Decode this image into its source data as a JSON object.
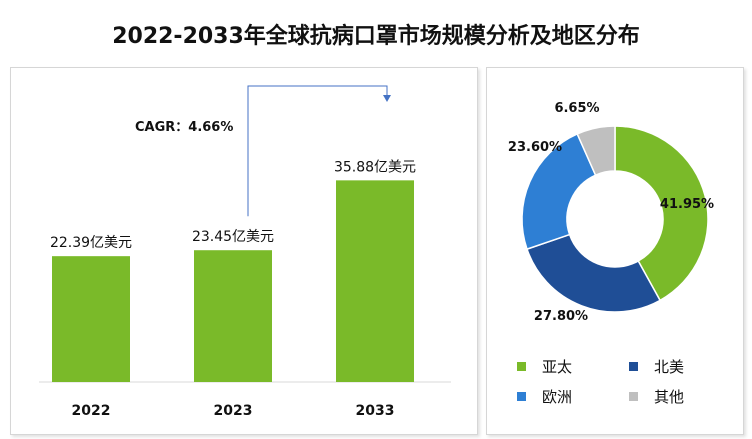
{
  "title": "2022-2033年全球抗病口罩市场规模分析及地区分布",
  "chart_data": [
    {
      "type": "bar",
      "categories": [
        "2022",
        "2023",
        "2033"
      ],
      "values": [
        22.39,
        23.45,
        35.88
      ],
      "data_labels": [
        "22.39亿美元",
        "23.45亿美元",
        "35.88亿美元"
      ],
      "unit": "亿美元",
      "annotation": "CAGR：4.66%",
      "color": "#7aba29"
    },
    {
      "type": "pie",
      "donut": true,
      "labels": [
        "亚太",
        "北美",
        "欧洲",
        "其他"
      ],
      "values": [
        41.95,
        27.8,
        23.6,
        6.65
      ],
      "value_labels": [
        "41.95%",
        "27.80%",
        "23.60%",
        "6.65%"
      ],
      "colors": [
        "#7aba29",
        "#1f4e96",
        "#2e7fd4",
        "#bfbfbf"
      ],
      "legend_position": "bottom"
    }
  ]
}
